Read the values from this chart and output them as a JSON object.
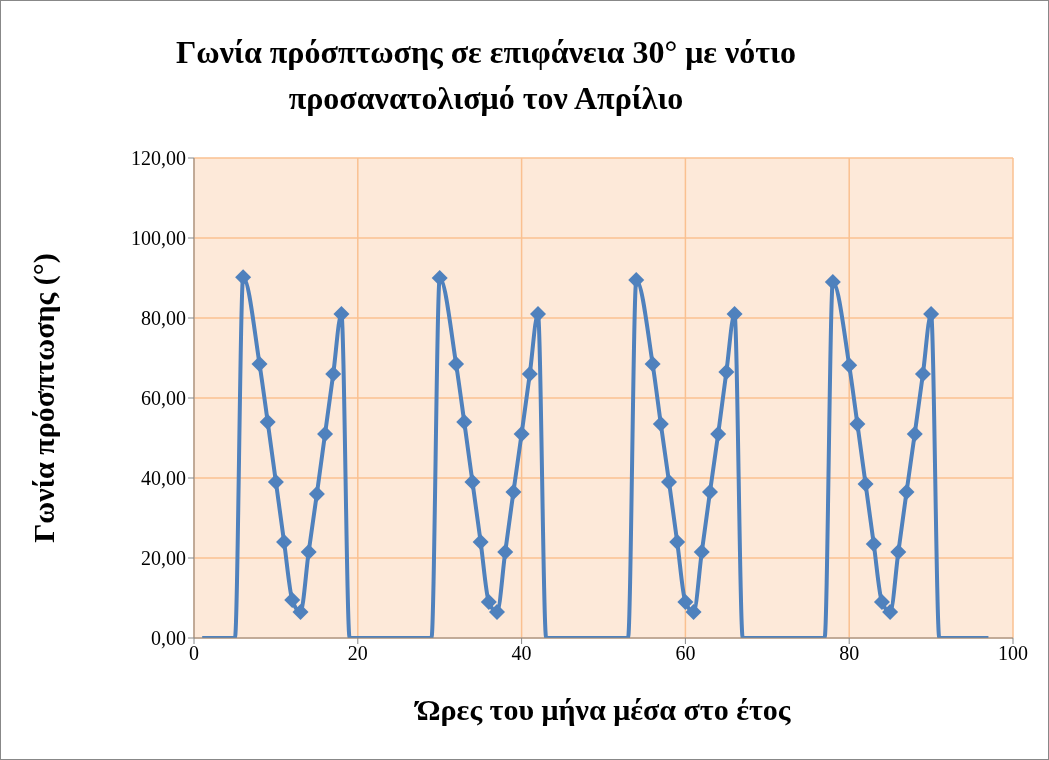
{
  "chart_data": {
    "type": "line",
    "title": "Γωνία πρόσπτωσης σε επιφάνεια 30° με νότιο προσανατολισμό τον Απρίλιο",
    "xlabel": "Ώρες του μήνα μέσα στο έτος",
    "ylabel": "Γωνία  πρόσπτωσης (°)",
    "x": [
      1,
      2,
      3,
      4,
      5,
      6,
      8,
      9,
      10,
      11,
      12,
      13,
      14,
      15,
      16,
      17,
      18,
      19,
      20,
      21,
      22,
      23,
      24,
      25,
      26,
      27,
      28,
      29,
      30,
      32,
      33,
      34,
      35,
      36,
      37,
      38,
      39,
      40,
      41,
      42,
      43,
      44,
      45,
      46,
      47,
      48,
      49,
      50,
      51,
      52,
      53,
      54,
      56,
      57,
      58,
      59,
      60,
      61,
      62,
      63,
      64,
      65,
      66,
      67,
      68,
      69,
      70,
      71,
      72,
      73,
      74,
      75,
      76,
      77,
      78,
      80,
      81,
      82,
      83,
      84,
      85,
      86,
      87,
      88,
      89,
      90,
      91,
      92,
      93,
      94,
      95,
      96,
      97
    ],
    "series": [
      {
        "color": "#4f81bd",
        "values": [
          0,
          0,
          0,
          0,
          0,
          90.2,
          68.5,
          54,
          39,
          24,
          9.5,
          6.5,
          21.5,
          36,
          51,
          66,
          81,
          0,
          0,
          0,
          0,
          0,
          0,
          0,
          0,
          0,
          0,
          0,
          90,
          68.5,
          54,
          39,
          24,
          9,
          6.5,
          21.5,
          36.5,
          51,
          66,
          81,
          0,
          0,
          0,
          0,
          0,
          0,
          0,
          0,
          0,
          0,
          0,
          89.5,
          68.5,
          53.5,
          39,
          24,
          9,
          6.5,
          21.5,
          36.5,
          51,
          66.5,
          81,
          0,
          0,
          0,
          0,
          0,
          0,
          0,
          0,
          0,
          0,
          0,
          89,
          68.2,
          53.5,
          38.5,
          23.5,
          9,
          6.5,
          21.5,
          36.5,
          51,
          66,
          81,
          0,
          0,
          0,
          0,
          0,
          0,
          0
        ]
      }
    ],
    "xlim": [
      0,
      100
    ],
    "xticks": [
      0,
      20,
      40,
      60,
      80,
      100
    ],
    "ylim": [
      0,
      120
    ],
    "yticks": [
      {
        "value": 0,
        "label": "0,00"
      },
      {
        "value": 20,
        "label": "20,00"
      },
      {
        "value": 40,
        "label": "40,00"
      },
      {
        "value": 60,
        "label": "60,00"
      },
      {
        "value": 80,
        "label": "80,00"
      },
      {
        "value": 100,
        "label": "100,00"
      },
      {
        "value": 120,
        "label": "120,00"
      }
    ],
    "grid": true,
    "marker": "diamond",
    "line_style": "solid"
  }
}
